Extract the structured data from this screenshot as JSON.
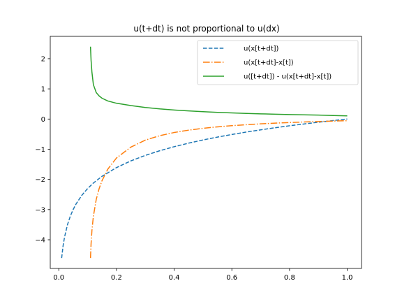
{
  "chart_data": {
    "type": "line",
    "title": "u(t+dt) is not proportional to u(dx)",
    "xlabel": "",
    "ylabel": "",
    "xlim": [
      -0.0295,
      1.0495
    ],
    "ylim": [
      -4.95,
      2.74
    ],
    "grid": false,
    "legend_position": "top-right",
    "x_ticks": [
      0.0,
      0.2,
      0.4,
      0.6,
      0.8,
      1.0
    ],
    "x_tick_labels": [
      "0.0",
      "0.2",
      "0.4",
      "0.6",
      "0.8",
      "1.0"
    ],
    "y_ticks": [
      -4,
      -3,
      -2,
      -1,
      0,
      1,
      2
    ],
    "y_tick_labels": [
      "−4",
      "−3",
      "−2",
      "−1",
      "0",
      "1",
      "2"
    ],
    "series": [
      {
        "name": "u(x[t+dt])",
        "color": "#1f77b4",
        "style": "dashed",
        "x": [
          0.01,
          0.015,
          0.02,
          0.03,
          0.04,
          0.05,
          0.06,
          0.08,
          0.1,
          0.12,
          0.15,
          0.2,
          0.25,
          0.3,
          0.35,
          0.4,
          0.45,
          0.5,
          0.55,
          0.6,
          0.65,
          0.7,
          0.75,
          0.8,
          0.85,
          0.9,
          0.95,
          1.0
        ],
        "y": [
          -4.605,
          -4.2,
          -3.912,
          -3.507,
          -3.219,
          -2.996,
          -2.813,
          -2.526,
          -2.303,
          -2.12,
          -1.897,
          -1.609,
          -1.386,
          -1.204,
          -1.05,
          -0.916,
          -0.799,
          -0.693,
          -0.598,
          -0.511,
          -0.431,
          -0.357,
          -0.288,
          -0.223,
          -0.163,
          -0.105,
          -0.051,
          0.0
        ]
      },
      {
        "name": "u(x[t+dt]-x[t])",
        "color": "#ff7f0e",
        "style": "dashdot",
        "x": [
          0.11,
          0.112,
          0.115,
          0.12,
          0.13,
          0.14,
          0.15,
          0.17,
          0.2,
          0.25,
          0.3,
          0.35,
          0.4,
          0.45,
          0.5,
          0.55,
          0.6,
          0.65,
          0.7,
          0.75,
          0.8,
          0.85,
          0.9,
          0.95,
          1.0
        ],
        "y": [
          -4.605,
          -4.135,
          -3.689,
          -3.219,
          -2.659,
          -2.303,
          -2.04,
          -1.661,
          -1.291,
          -0.929,
          -0.699,
          -0.551,
          -0.446,
          -0.368,
          -0.307,
          -0.259,
          -0.219,
          -0.187,
          -0.159,
          -0.135,
          -0.115,
          -0.097,
          -0.082,
          -0.067,
          -0.055
        ]
      },
      {
        "name": "u([t+dt]) - u(x[t+dt]-x[t])",
        "color": "#2ca02c",
        "style": "solid",
        "x": [
          0.11,
          0.112,
          0.115,
          0.12,
          0.13,
          0.14,
          0.15,
          0.17,
          0.2,
          0.25,
          0.3,
          0.35,
          0.4,
          0.45,
          0.5,
          0.55,
          0.6,
          0.65,
          0.7,
          0.75,
          0.8,
          0.85,
          0.9,
          0.95,
          1.0
        ],
        "y": [
          2.398,
          1.946,
          1.55,
          1.14,
          0.875,
          0.765,
          0.69,
          0.599,
          0.524,
          0.446,
          0.383,
          0.336,
          0.3,
          0.269,
          0.243,
          0.221,
          0.203,
          0.187,
          0.173,
          0.16,
          0.15,
          0.14,
          0.13,
          0.118,
          0.105
        ]
      }
    ]
  }
}
